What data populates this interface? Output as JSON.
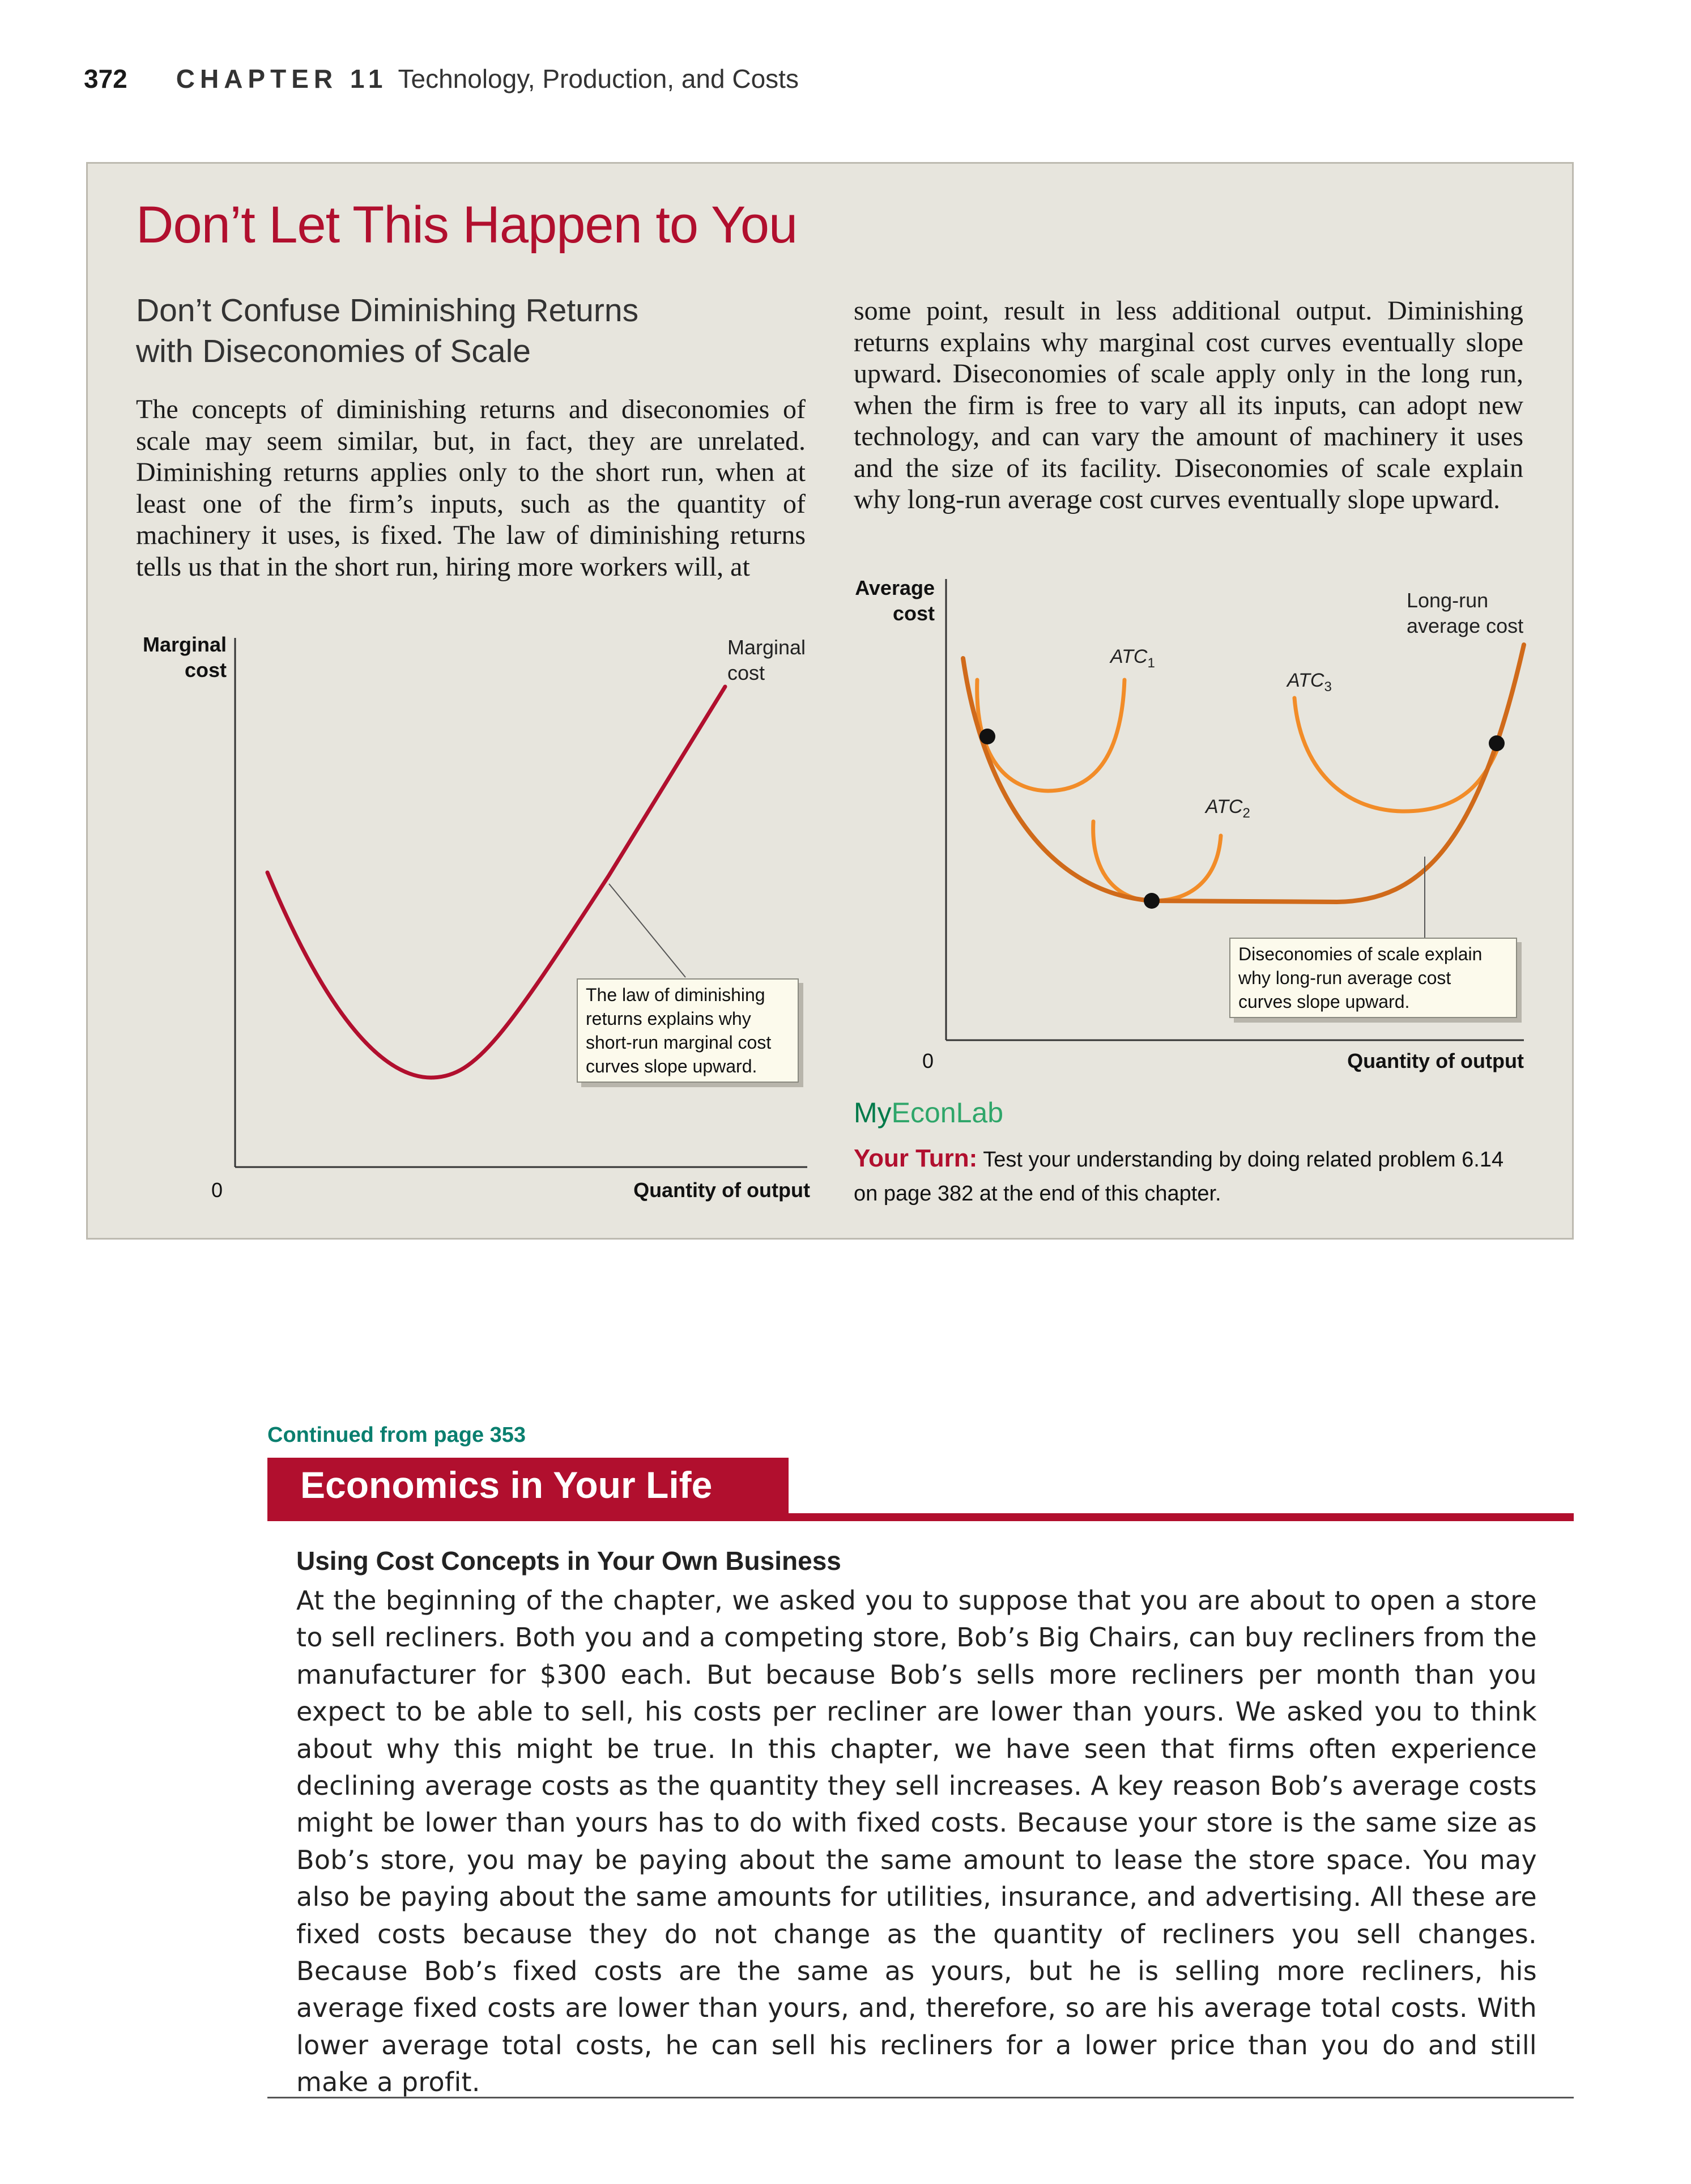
{
  "header": {
    "page_number": "372",
    "chapter_label": "CHAPTER 11",
    "chapter_title": "Technology, Production, and Costs"
  },
  "feature_box": {
    "title": "Don’t Let This Happen to You",
    "subtitle_line1": "Don’t Confuse Diminishing Returns",
    "subtitle_line2": "with Diseconomies of Scale",
    "col1_text": "The concepts of diminishing returns and diseconomies of scale may seem similar, but, in fact, they are unrelated. Diminishing returns applies only to the short run, when at least one of the firm’s inputs, such as the quantity of machinery it uses, is fixed. The law of diminishing returns tells us that in the short run, hiring more workers will, at",
    "col2_text": "some point, result in less additional output. Diminishing returns explains why marginal cost curves eventually slope upward. Diseconomies of scale apply only in the long run, when the firm is free to vary all its inputs, can adopt new technology, and can vary the amount of machinery it uses and the size of its facility. Diseconomies of scale explain why long-run average cost curves eventually slope upward.",
    "left_graph": {
      "y_axis_label_1": "Marginal",
      "y_axis_label_2": "cost",
      "x_axis_label": "Quantity of output",
      "origin": "0",
      "curve_label_1": "Marginal",
      "curve_label_2": "cost",
      "callout": [
        "The law of diminishing",
        "returns explains why",
        "short-run marginal cost",
        "curves slope upward."
      ],
      "curve_color": "#b10f2e"
    },
    "right_graph": {
      "y_axis_label_1": "Average",
      "y_axis_label_2": "cost",
      "x_axis_label": "Quantity of output",
      "origin": "0",
      "lrac_label_1": "Long-run",
      "lrac_label_2": "average cost",
      "atc_labels": [
        {
          "main": "ATC",
          "sub": "1"
        },
        {
          "main": "ATC",
          "sub": "2"
        },
        {
          "main": "ATC",
          "sub": "3"
        }
      ],
      "callout": [
        "Diseconomies of scale explain",
        "why long-run average cost",
        "curves slope upward."
      ],
      "lrac_color": "#d06a1a",
      "atc_color": "#f28c28"
    },
    "myeconlab_a": "My",
    "myeconlab_b": "EconLab",
    "your_turn_label": "Your Turn:",
    "your_turn_text": " Test your understanding by doing related problem 6.14 on page 382 at the end of this chapter."
  },
  "economics_in_your_life": {
    "continued": "Continued from page 353",
    "title": "Economics in Your Life",
    "subtitle": "Using Cost Concepts in Your Own Business",
    "body": "At the beginning of the chapter, we asked you to suppose that you are about to open a store to sell recliners. Both you and a competing store, Bob’s Big Chairs, can buy recliners from the manufacturer for $300 each. But because Bob’s sells more recliners per month than you expect to be able to sell, his costs per recliner are lower than yours. We asked you to think about why this might be true. In this chapter, we have seen that firms often experience declining average costs as the quantity they sell increases. A key reason Bob’s average costs might be lower than yours has to do with fixed costs. Because your store is the same size as Bob’s store, you may be paying about the same amount to lease the store space. You may also be paying about the same amounts for utilities, insurance, and advertising. All these are fixed costs because they do not change as the quantity of recliners you sell changes. Because Bob’s fixed costs are the same as yours, but he is selling more recliners, his average fixed costs are lower than yours, and, therefore, so are his average total costs. With lower average total costs, he can sell his recliners for a lower price than you do and still make a profit."
  }
}
